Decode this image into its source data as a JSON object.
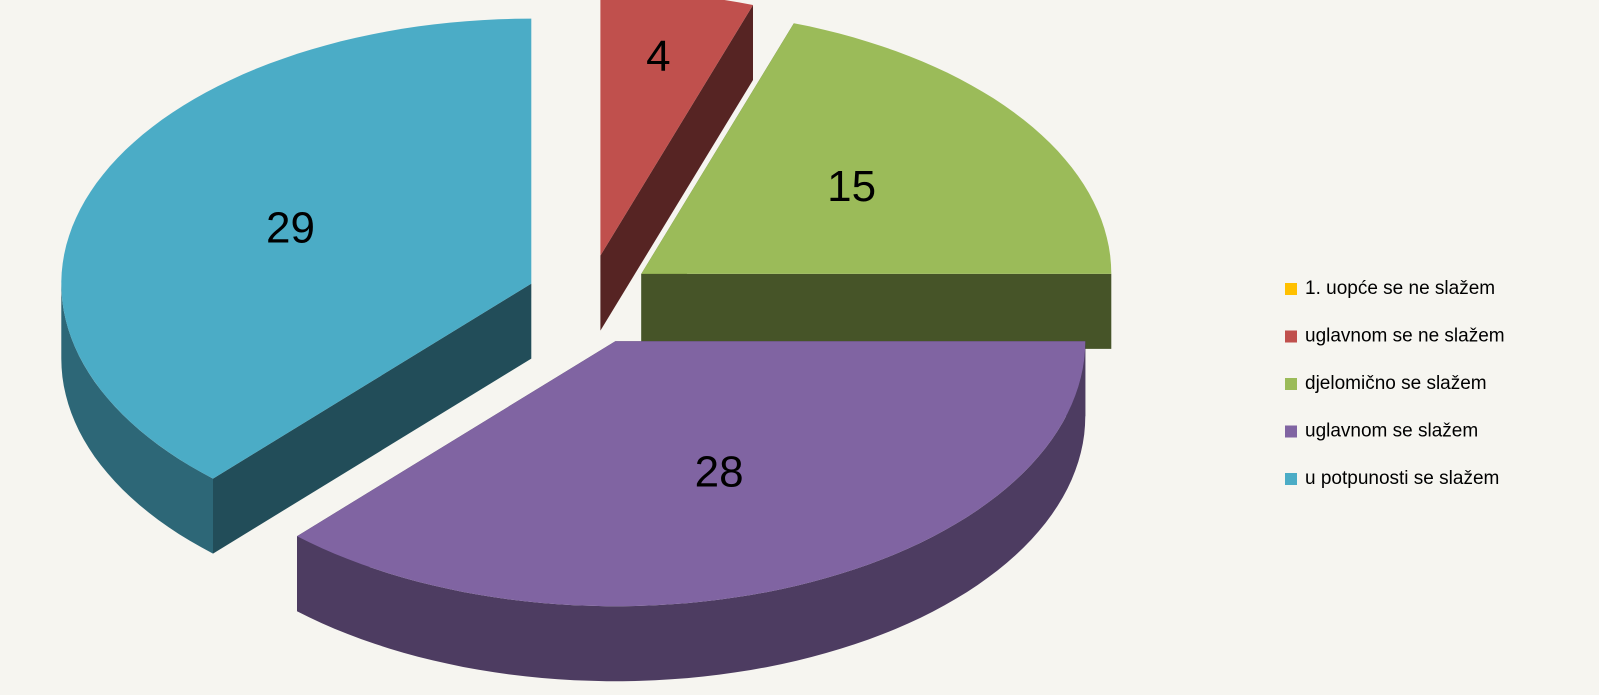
{
  "chart_data": {
    "type": "pie",
    "categories": [
      "1. uopće se ne slažem",
      "uglavnom se ne slažem",
      "djelomično se slažem",
      "uglavnom se slažem",
      "u potpunosti se slažem"
    ],
    "values": [
      0,
      4,
      15,
      28,
      29
    ],
    "colors": [
      "#ffc000",
      "#c0504d",
      "#9bbb59",
      "#8064a2",
      "#4bacc6"
    ],
    "legend": "right"
  }
}
